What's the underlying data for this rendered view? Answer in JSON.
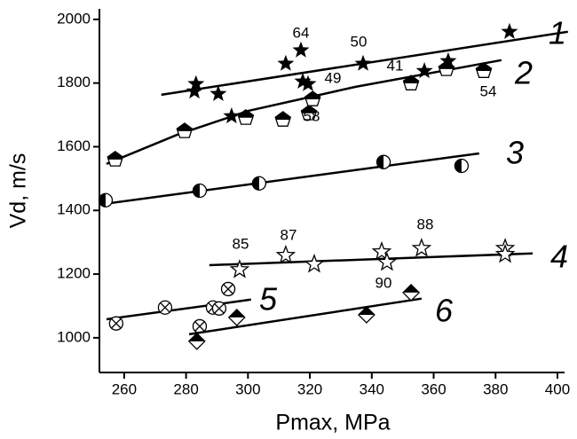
{
  "chart_data": {
    "type": "scatter",
    "x_label": "Pmax, MPa",
    "y_label": "Vd, m/s",
    "xlim": [
      252,
      402.3
    ],
    "ylim": [
      891,
      2033
    ],
    "xticks": [
      260,
      280,
      300,
      320,
      340,
      360,
      380,
      400
    ],
    "yticks": [
      1000,
      1200,
      1400,
      1600,
      1800,
      2000
    ],
    "annotations": [
      "64",
      "50",
      "49",
      "41",
      "58",
      "54",
      "85",
      "87",
      "88",
      "90"
    ],
    "series": [
      {
        "name": "1",
        "marker": "star",
        "color": "#000000",
        "x": [
          283.2,
          282.7,
          290.4,
          294.7,
          312.2,
          317.1,
          317.7,
          319.4,
          337.2,
          364.7,
          357.0,
          384.5
        ],
        "values": [
          1797,
          1774,
          1766,
          1696,
          1861,
          1903,
          1805,
          1797,
          1861,
          1869,
          1838,
          1961
        ],
        "fit": {
          "x": [
            272,
            403.4
          ],
          "y": [
            1763,
            1961
          ]
        }
      },
      {
        "name": "2",
        "marker": "pentagon",
        "color": "#000000",
        "x": [
          257.1,
          279.5,
          299.3,
          311.3,
          319.7,
          320.9,
          352.7,
          364.1,
          376.2
        ],
        "values": [
          1560,
          1649,
          1691,
          1685,
          1705,
          1749,
          1799,
          1844,
          1838
        ],
        "fit": {
          "x": [
            254.3,
            277.2,
            300.2,
            334.6,
            381.9
          ],
          "y": [
            1546,
            1638,
            1713,
            1788,
            1872
          ]
        }
      },
      {
        "name": "3",
        "marker": "half-circle",
        "color": "#000000",
        "x": [
          254,
          284.4,
          303.6,
          343.8,
          369
        ],
        "values": [
          1432,
          1462,
          1485,
          1552,
          1540
        ],
        "fit": {
          "x": [
            254,
            374.7
          ],
          "y": [
            1421,
            1579
          ]
        }
      },
      {
        "name": "4",
        "marker": "open-star",
        "color": "#000000",
        "x": [
          297.3,
          312.2,
          321.4,
          343.2,
          344.9,
          356.1,
          383.1,
          383.1
        ],
        "values": [
          1214,
          1259,
          1231,
          1270,
          1237,
          1281,
          1281,
          1262
        ],
        "fit": {
          "x": [
            287.5,
            392
          ],
          "y": [
            1228,
            1265
          ]
        }
      },
      {
        "name": "5",
        "marker": "crossed-circle",
        "color": "#000000",
        "x": [
          257.4,
          273.2,
          284.4,
          288.7,
          290.7,
          293.6
        ],
        "values": [
          1045,
          1095,
          1036,
          1095,
          1092,
          1153
        ],
        "fit": {
          "x": [
            254.3,
            301
          ],
          "y": [
            1058,
            1120
          ]
        }
      },
      {
        "name": "6",
        "marker": "half-diamond",
        "color": "#000000",
        "x": [
          283.5,
          296.4,
          338.3,
          352.7
        ],
        "values": [
          989,
          1064,
          1072,
          1142
        ],
        "fit": {
          "x": [
            281,
            356.1
          ],
          "y": [
            1011,
            1123
          ]
        }
      }
    ]
  }
}
